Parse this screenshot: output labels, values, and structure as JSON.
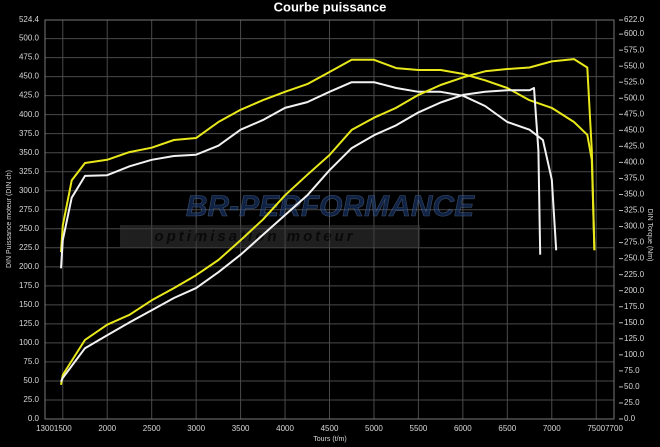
{
  "chart_data": {
    "type": "line",
    "title": "Courbe puissance",
    "xlabel": "Tours (t/m)",
    "ylabel": "DIN Puissance moteur (DIN ch)",
    "y2label": "DIN Torque (Nm)",
    "watermark": [
      "BR-PERFORMANCE",
      "optimisation moteur"
    ],
    "grid": true,
    "xlim": [
      1300,
      7700
    ],
    "xticks": [
      1300,
      1500,
      2000,
      2500,
      3000,
      3500,
      4000,
      4500,
      5000,
      5500,
      6000,
      6500,
      7000,
      7500,
      7700
    ],
    "ylim": [
      0,
      524.4
    ],
    "yticks": [
      {
        "value": 0,
        "label": "0.0"
      },
      {
        "value": 25,
        "label": "25.0"
      },
      {
        "value": 50,
        "label": "50.0"
      },
      {
        "value": 75,
        "label": "75.0"
      },
      {
        "value": 100,
        "label": "100.0"
      },
      {
        "value": 125,
        "label": "125.0"
      },
      {
        "value": 150,
        "label": "150.0"
      },
      {
        "value": 175,
        "label": "175.0"
      },
      {
        "value": 200,
        "label": "200.0"
      },
      {
        "value": 225,
        "label": "225.0"
      },
      {
        "value": 250,
        "label": "250.0"
      },
      {
        "value": 275,
        "label": "275.0"
      },
      {
        "value": 300,
        "label": "300.0"
      },
      {
        "value": 325,
        "label": "325.0"
      },
      {
        "value": 350,
        "label": "350.0"
      },
      {
        "value": 375,
        "label": "375.0"
      },
      {
        "value": 400,
        "label": "400.0"
      },
      {
        "value": 425,
        "label": "425.0"
      },
      {
        "value": 450,
        "label": "450.0"
      },
      {
        "value": 475,
        "label": "475.0"
      },
      {
        "value": 500,
        "label": "500.0"
      },
      524.4
    ],
    "y2lim": [
      0,
      622
    ],
    "y2ticks": [
      {
        "value": 0,
        "label": "0.0"
      },
      {
        "value": 25,
        "label": "25.0"
      },
      {
        "value": 50,
        "label": "50.0"
      },
      {
        "value": 75,
        "label": "75.0"
      },
      {
        "value": 100,
        "label": "100.0"
      },
      {
        "value": 125,
        "label": "125.0"
      },
      {
        "value": 150,
        "label": "150.0"
      },
      {
        "value": 175,
        "label": "175.0"
      },
      {
        "value": 200,
        "label": "200.0"
      },
      {
        "value": 225,
        "label": "225.0"
      },
      {
        "value": 250,
        "label": "250.0"
      },
      {
        "value": 275,
        "label": "275.0"
      },
      {
        "value": 300,
        "label": "300.0"
      },
      {
        "value": 325,
        "label": "325.0"
      },
      {
        "value": 350,
        "label": "350.0"
      },
      {
        "value": 375,
        "label": "375.0"
      },
      {
        "value": 400,
        "label": "400.0"
      },
      {
        "value": 425,
        "label": "425.0"
      },
      {
        "value": 450,
        "label": "450.0"
      },
      {
        "value": 475,
        "label": "475.0"
      },
      {
        "value": 500,
        "label": "500.0"
      },
      {
        "value": 525,
        "label": "525.0"
      },
      {
        "value": 550,
        "label": "550.0"
      },
      {
        "value": 575,
        "label": "575.0"
      },
      {
        "value": 600,
        "label": "600.0"
      },
      {
        "value": 622,
        "label": "622.0"
      }
    ],
    "series": [
      {
        "color": "#e8e81a",
        "axis": "y2",
        "x": [
          1480,
          1500,
          1600,
          1750,
          2000,
          2250,
          2500,
          2750,
          3000,
          3250,
          3500,
          3750,
          4000,
          4250,
          4500,
          4750,
          5000,
          5250,
          5500,
          5750,
          6000,
          6250,
          6500,
          6750,
          7000,
          7250,
          7400,
          7450,
          7480
        ],
        "values": [
          260,
          302,
          372,
          399,
          404,
          416,
          423,
          435,
          438,
          463,
          482,
          497,
          510,
          522,
          541,
          560,
          560,
          547,
          544,
          544,
          538,
          528,
          516,
          497,
          485,
          463,
          443,
          404,
          263
        ]
      },
      {
        "color": "#f2f2f2",
        "axis": "y2",
        "x": [
          1480,
          1500,
          1600,
          1750,
          2000,
          2250,
          2500,
          2750,
          3000,
          3250,
          3500,
          3750,
          4000,
          4250,
          4500,
          4750,
          5000,
          5250,
          5500,
          5750,
          6000,
          6250,
          6500,
          6750,
          6900,
          7000,
          7050
        ],
        "values": [
          235,
          279,
          345,
          379,
          380,
          394,
          404,
          410,
          412,
          426,
          451,
          466,
          485,
          494,
          510,
          525,
          525,
          516,
          510,
          510,
          504,
          488,
          463,
          451,
          435,
          373,
          263
        ]
      },
      {
        "color": "#e8e81a",
        "x": [
          1480,
          1500,
          1750,
          2000,
          2250,
          2500,
          2750,
          3000,
          3250,
          3500,
          3750,
          4000,
          4250,
          4500,
          4750,
          5000,
          5250,
          5500,
          5750,
          6000,
          6250,
          6500,
          6750,
          7000,
          7250,
          7400,
          7450,
          7480
        ],
        "values": [
          45,
          58,
          104,
          124,
          137,
          156,
          172,
          189,
          209,
          235,
          262,
          294,
          321,
          347,
          380,
          396,
          409,
          426,
          439,
          449,
          457,
          460,
          462,
          470,
          473,
          462,
          353,
          222
        ]
      },
      {
        "color": "#f2f2f2",
        "x": [
          1480,
          1500,
          1750,
          2000,
          2250,
          2500,
          2750,
          3000,
          3250,
          3500,
          3750,
          4000,
          4250,
          4500,
          4750,
          5000,
          5250,
          5500,
          5750,
          6000,
          6250,
          6500,
          6750,
          6800,
          6850,
          6870
        ],
        "values": [
          49,
          54,
          93,
          110,
          127,
          143,
          159,
          172,
          193,
          216,
          242,
          268,
          294,
          327,
          356,
          373,
          386,
          403,
          416,
          426,
          430,
          432,
          432,
          435,
          353,
          216
        ]
      }
    ]
  }
}
